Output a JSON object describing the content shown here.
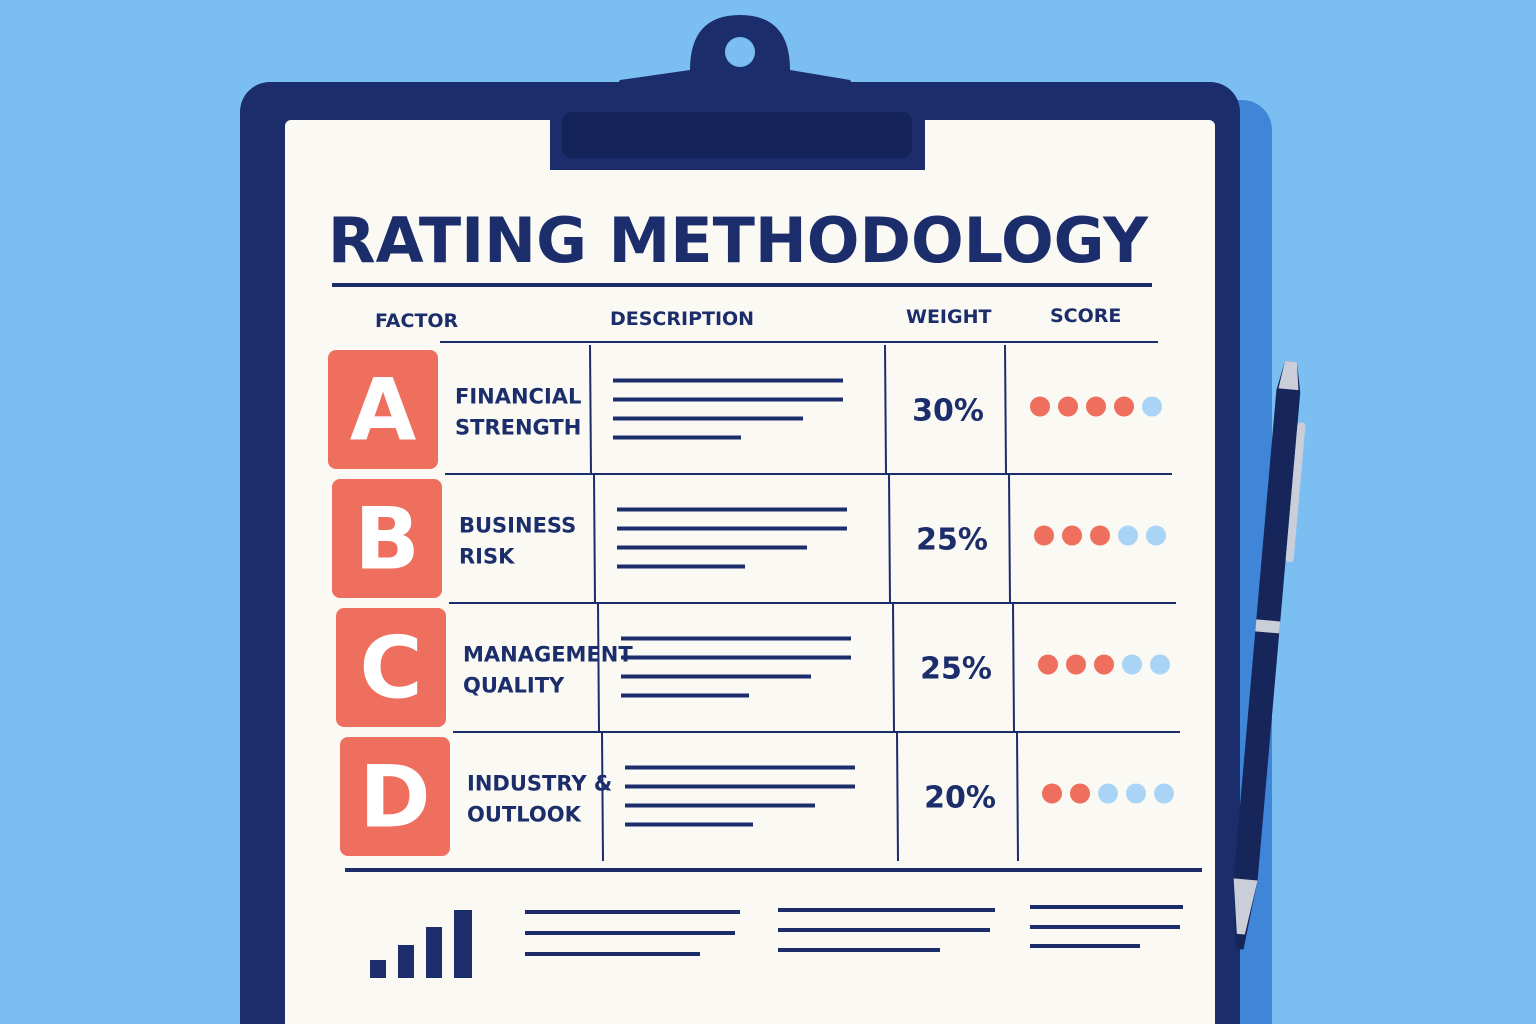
{
  "title": "RATING METHODOLOGY",
  "table": {
    "headers": [
      "FACTOR",
      "DESCRIPTION",
      "WEIGHT",
      "SCORE"
    ],
    "scale": 5,
    "rows": [
      {
        "letter": "A",
        "factor": [
          "FINANCIAL",
          "STRENGTH"
        ],
        "weight": "30%",
        "score": 4
      },
      {
        "letter": "B",
        "factor": [
          "BUSINESS",
          "RISK"
        ],
        "weight": "25%",
        "score": 3
      },
      {
        "letter": "C",
        "factor": [
          "MANAGEMENT",
          "QUALITY"
        ],
        "weight": "25%",
        "score": 3
      },
      {
        "letter": "D",
        "factor": [
          "INDUSTRY &",
          "OUTLOOK"
        ],
        "weight": "20%",
        "score": 2
      }
    ]
  }
}
